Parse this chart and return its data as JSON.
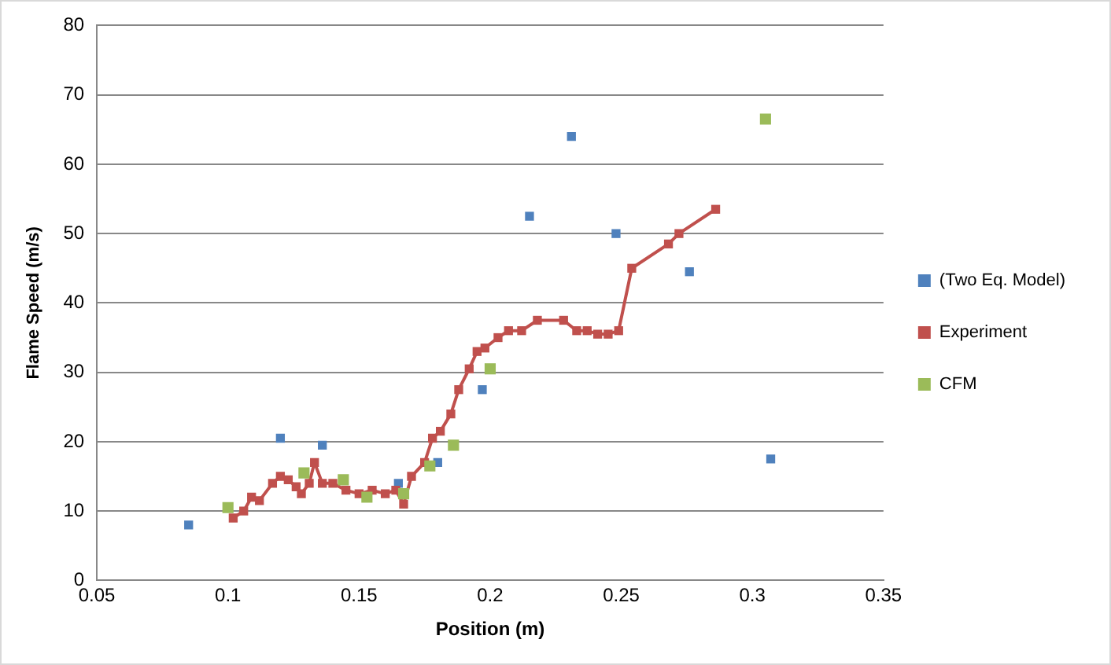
{
  "chart_data": {
    "type": "scatter",
    "xlabel": "Position (m)",
    "ylabel": "Flame Speed (m/s)",
    "xlim": [
      0.05,
      0.35
    ],
    "xticks": [
      0.05,
      0.1,
      0.15,
      0.2,
      0.25,
      0.3,
      0.35
    ],
    "ylim": [
      0,
      80
    ],
    "yticks": [
      0,
      10,
      20,
      30,
      40,
      50,
      60,
      70,
      80
    ],
    "grid": "y",
    "legend": "right",
    "marker": "square",
    "series": [
      {
        "name": "(Two Eq. Model)",
        "color": "#4f81bd",
        "x": [
          0.085,
          0.12,
          0.136,
          0.165,
          0.18,
          0.197,
          0.215,
          0.231,
          0.248,
          0.276,
          0.307
        ],
        "values": [
          8,
          20.5,
          19.5,
          14,
          17,
          27.5,
          52.5,
          64,
          50,
          44.5,
          17.5
        ]
      },
      {
        "name": "Experiment",
        "type": "line",
        "line_style": "solid",
        "color": "#c0504d",
        "x": [
          0.102,
          0.106,
          0.109,
          0.112,
          0.117,
          0.12,
          0.123,
          0.126,
          0.128,
          0.131,
          0.133,
          0.136,
          0.14,
          0.145,
          0.15,
          0.155,
          0.16,
          0.164,
          0.167,
          0.17,
          0.175,
          0.178,
          0.181,
          0.185,
          0.188,
          0.192,
          0.195,
          0.198,
          0.203,
          0.207,
          0.212,
          0.218,
          0.228,
          0.233,
          0.237,
          0.241,
          0.245,
          0.249,
          0.254,
          0.268,
          0.272,
          0.286
        ],
        "values": [
          9,
          10,
          12,
          11.5,
          14,
          15,
          14.5,
          13.5,
          12.5,
          14,
          17,
          14,
          14,
          13,
          12.5,
          13,
          12.5,
          13,
          11,
          15,
          17,
          20.5,
          21.5,
          24,
          27.5,
          30.5,
          33,
          33.5,
          35,
          36,
          36,
          37.5,
          37.5,
          36,
          36,
          35.5,
          35.5,
          36,
          45,
          48.5,
          50,
          53.5
        ]
      },
      {
        "name": "CFM",
        "color": "#9bbb59",
        "x": [
          0.1,
          0.129,
          0.144,
          0.153,
          0.167,
          0.177,
          0.186,
          0.2,
          0.305
        ],
        "values": [
          10.5,
          15.5,
          14.5,
          12,
          12.5,
          16.5,
          19.5,
          30.5,
          66.5
        ]
      }
    ]
  }
}
